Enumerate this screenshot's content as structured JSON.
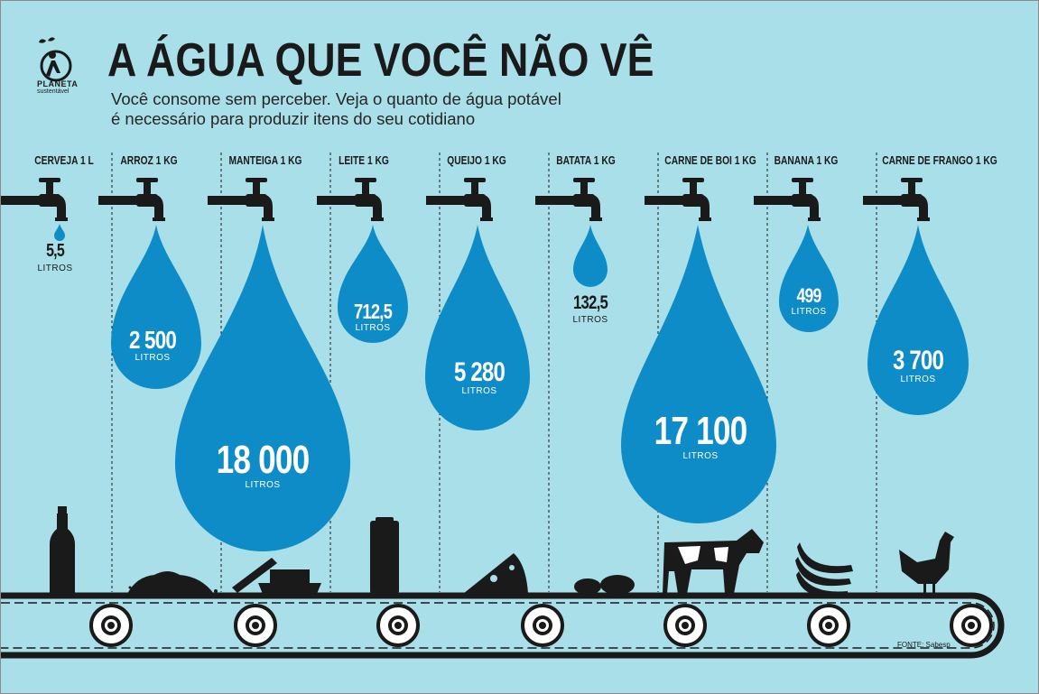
{
  "title": "A ÁGUA QUE VOCÊ NÃO VÊ",
  "subtitle_line1": "Você consome sem perceber. Veja o quanto de água potável",
  "subtitle_line2": "é necessário para produzir itens do seu cotidiano",
  "logo": {
    "name": "PLANETA",
    "tagline": "sustentável"
  },
  "source": "FONTE: Sabesp",
  "unit": "LITROS",
  "colors": {
    "background": "#a9dfe9",
    "drop": "#0e8cc7",
    "ink": "#1a1a1a"
  },
  "items": [
    {
      "label": "CERVEJA 1 L",
      "value": "5,5",
      "icon": "beer-bottle-icon"
    },
    {
      "label": "ARROZ 1 KG",
      "value": "2 500",
      "icon": "rice-pile-icon"
    },
    {
      "label": "MANTEIGA 1 KG",
      "value": "18 000",
      "icon": "butter-dish-icon"
    },
    {
      "label": "LEITE 1 KG",
      "value": "712,5",
      "icon": "milk-carton-icon"
    },
    {
      "label": "QUEIJO 1 KG",
      "value": "5 280",
      "icon": "cheese-wedge-icon"
    },
    {
      "label": "BATATA 1 KG",
      "value": "132,5",
      "icon": "potatoes-icon"
    },
    {
      "label": "CARNE DE BOI 1 KG",
      "value": "17 100",
      "icon": "cow-icon"
    },
    {
      "label": "BANANA 1 KG",
      "value": "499",
      "icon": "bananas-icon"
    },
    {
      "label": "CARNE DE FRANGO 1 KG",
      "value": "3 700",
      "icon": "chicken-icon"
    }
  ]
}
